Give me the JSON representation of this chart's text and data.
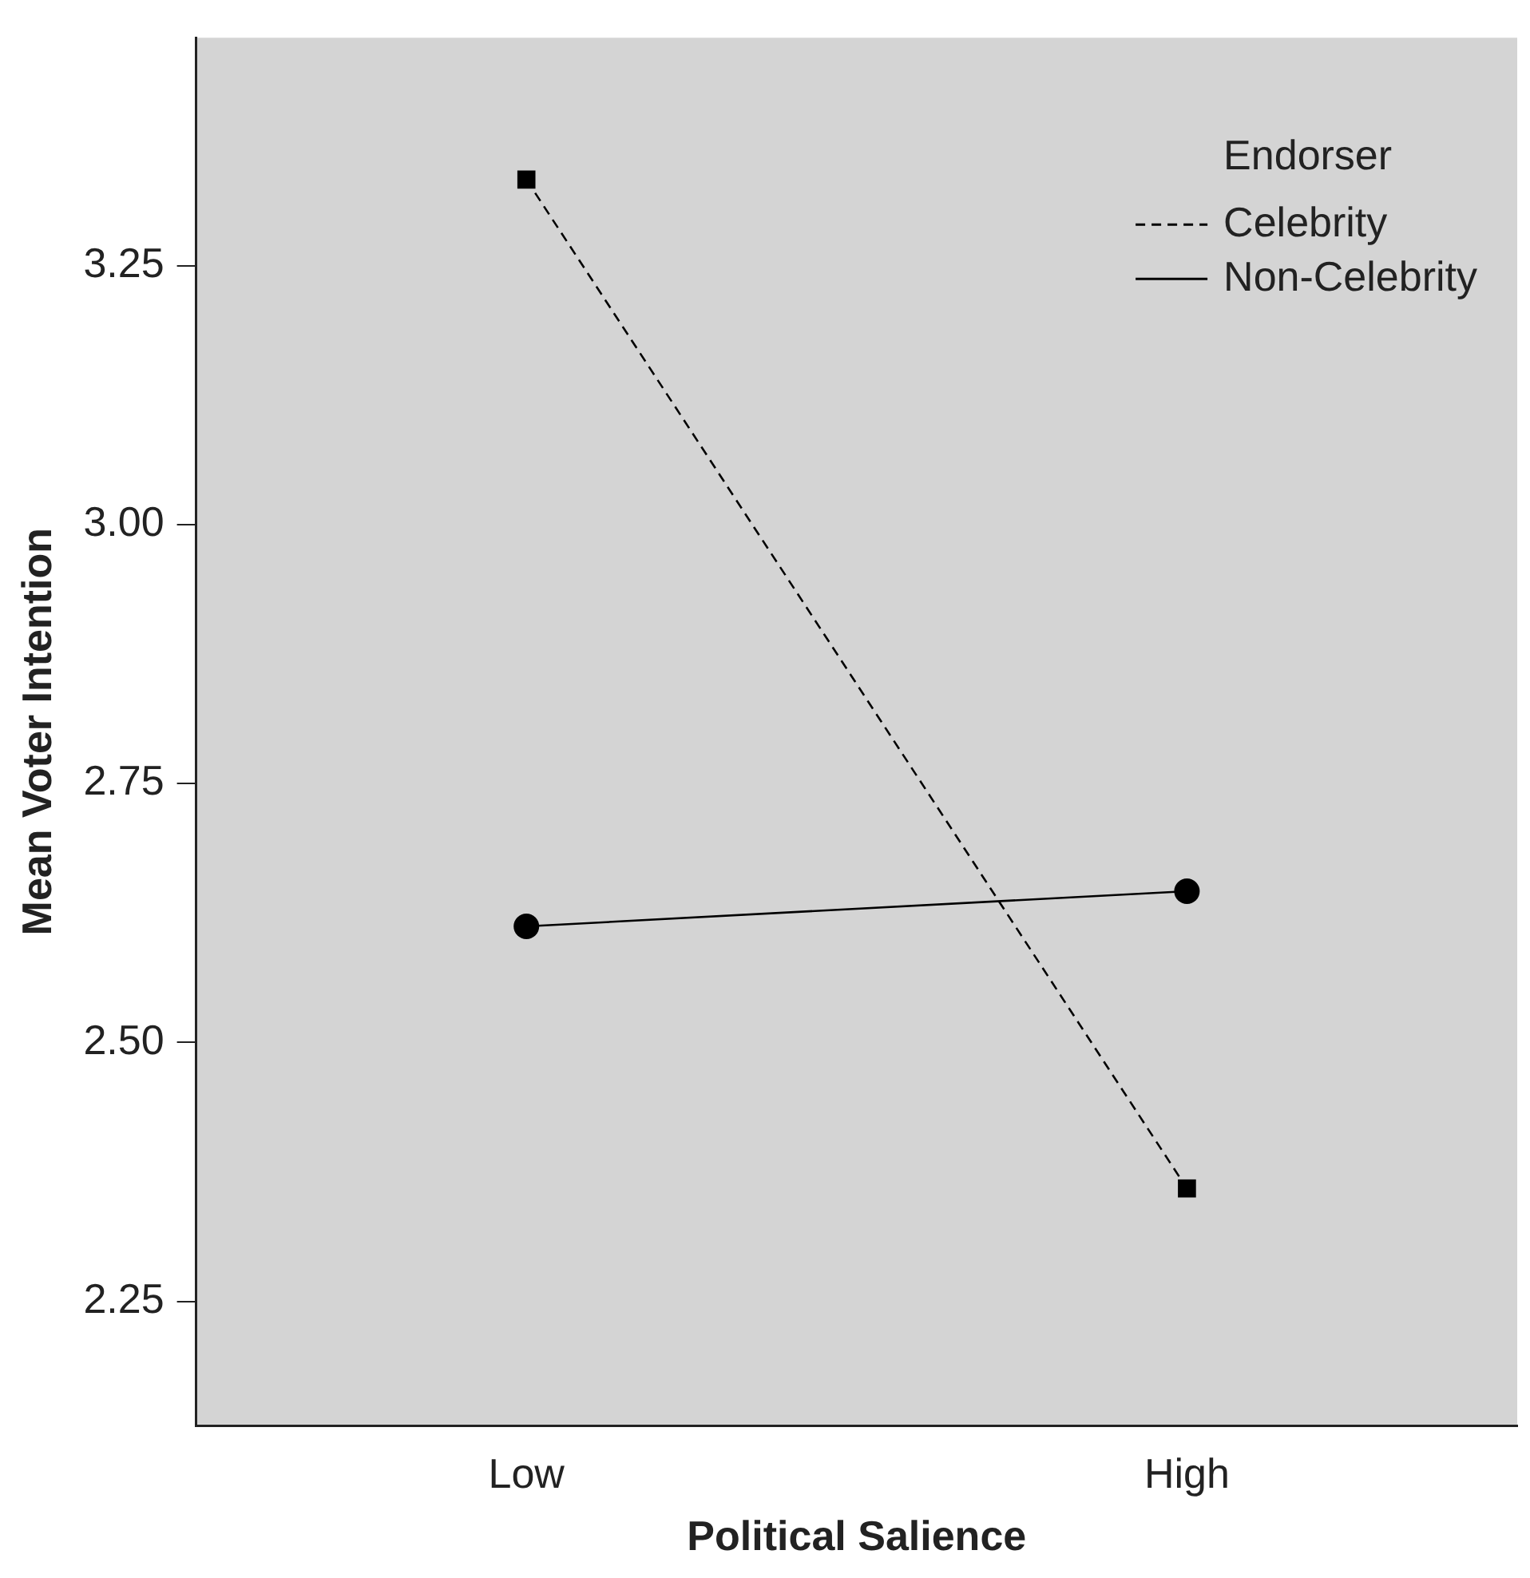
{
  "chart_data": {
    "type": "line",
    "xlabel": "Political Salience",
    "ylabel": "Mean Voter Intention",
    "legend_title": "Endorser",
    "categories": [
      "Low",
      "High"
    ],
    "series": [
      {
        "name": "Celebrity",
        "color": "#000000",
        "values": [
          3.333,
          2.359
        ],
        "line_style": "dashed",
        "marker": "square"
      },
      {
        "name": "Non-Celebrity",
        "color": "#000000",
        "values": [
          2.612,
          2.646
        ],
        "line_style": "solid",
        "marker": "circle"
      }
    ],
    "ylim": [
      2.13,
      3.47
    ],
    "yticks": [
      {
        "value": 2.25,
        "label": "2.25"
      },
      {
        "value": 2.5,
        "label": "2.50"
      },
      {
        "value": 2.75,
        "label": "2.75"
      },
      {
        "value": 3,
        "label": "3.00"
      },
      {
        "value": 3.25,
        "label": "3.25"
      }
    ],
    "grid": false,
    "legend": "top right"
  }
}
